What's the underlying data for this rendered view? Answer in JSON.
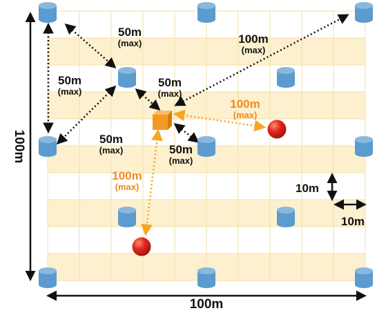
{
  "colors": {
    "band_fill": "#fdf0cf",
    "grid_line": "#f3dfa8",
    "black_arrow": "#111111",
    "orange_arrow": "#f5a623",
    "orange_text": "#f08a1c",
    "cylinder_top": "#8ab8dc",
    "cylinder_body": "#5b9bd0",
    "cube": "#f39a22",
    "ball": "#e2281d"
  },
  "icons": {
    "anchor": "blue-cylinder-icon",
    "target": "orange-cube-icon",
    "ball": "red-ball-icon"
  },
  "dimensions": {
    "height_label": "100m",
    "width_label": "100m",
    "cell_height_label": "10m",
    "cell_width_label": "10m"
  },
  "ranges": {
    "top_50": {
      "value": "50m",
      "qualifier": "(max)"
    },
    "left_50": {
      "value": "50m",
      "qualifier": "(max)"
    },
    "center_50": {
      "value": "50m",
      "qualifier": "(max)"
    },
    "lower_left_50": {
      "value": "50m",
      "qualifier": "(max)"
    },
    "lower_right_50": {
      "value": "50m",
      "qualifier": "(max)"
    },
    "top_right_100": {
      "value": "100m",
      "qualifier": "(max)"
    },
    "orange_right_100": {
      "value": "100m",
      "qualifier": "(max)"
    },
    "orange_down_100": {
      "value": "100m",
      "qualifier": "(max)"
    }
  }
}
